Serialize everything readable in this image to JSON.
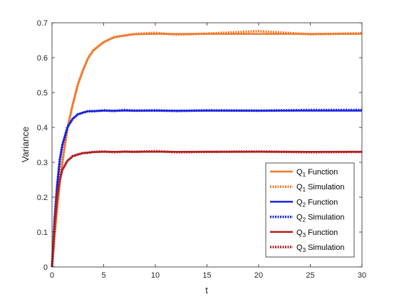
{
  "chart_data": {
    "type": "line",
    "title": "",
    "xlabel": "t",
    "ylabel": "Variance",
    "xlim": [
      0,
      30
    ],
    "ylim": [
      0,
      0.7
    ],
    "xticks": [
      "0",
      "5",
      "10",
      "15",
      "20",
      "25",
      "30"
    ],
    "yticks": [
      "0",
      "0.1",
      "0.2",
      "0.3",
      "0.4",
      "0.5",
      "0.6",
      "0.7"
    ],
    "grid": false,
    "legend_position": "lower-right",
    "x": [
      0,
      0.25,
      0.5,
      0.75,
      1,
      1.5,
      2,
      2.5,
      3,
      3.5,
      4,
      5,
      6,
      7,
      8,
      10,
      12,
      15,
      20,
      25,
      30
    ],
    "series": [
      {
        "name": "Q1 Function",
        "legend_main": "Q",
        "legend_sub": "1",
        "legend_rest": " Function",
        "color": "#F07A2A",
        "style": "solid",
        "values": [
          0,
          0.09,
          0.172,
          0.242,
          0.302,
          0.397,
          0.466,
          0.522,
          0.565,
          0.598,
          0.62,
          0.645,
          0.658,
          0.664,
          0.667,
          0.668,
          0.668,
          0.668,
          0.668,
          0.668,
          0.668
        ]
      },
      {
        "name": "Q1 Simulation",
        "legend_main": "Q",
        "legend_sub": "1",
        "legend_rest": " Simulation",
        "color": "#F07A2A",
        "style": "dotted",
        "values": [
          0,
          0.092,
          0.17,
          0.244,
          0.3,
          0.399,
          0.464,
          0.524,
          0.563,
          0.6,
          0.622,
          0.644,
          0.659,
          0.663,
          0.668,
          0.671,
          0.666,
          0.669,
          0.676,
          0.667,
          0.67
        ]
      },
      {
        "name": "Q2 Function",
        "legend_main": "Q",
        "legend_sub": "2",
        "legend_rest": " Function",
        "color": "#1A22E0",
        "style": "solid",
        "values": [
          0,
          0.135,
          0.235,
          0.305,
          0.35,
          0.4,
          0.425,
          0.437,
          0.443,
          0.446,
          0.447,
          0.448,
          0.448,
          0.448,
          0.448,
          0.448,
          0.448,
          0.448,
          0.448,
          0.448,
          0.448
        ]
      },
      {
        "name": "Q2 Simulation",
        "legend_main": "Q",
        "legend_sub": "2",
        "legend_rest": " Simulation",
        "color": "#1A22E0",
        "style": "dotted",
        "values": [
          0,
          0.137,
          0.233,
          0.307,
          0.349,
          0.402,
          0.424,
          0.438,
          0.442,
          0.447,
          0.446,
          0.449,
          0.447,
          0.45,
          0.448,
          0.449,
          0.447,
          0.449,
          0.448,
          0.45,
          0.45
        ]
      },
      {
        "name": "Q3 Function",
        "legend_main": "Q",
        "legend_sub": "3",
        "legend_rest": " Function",
        "color": "#B22020",
        "style": "solid",
        "values": [
          0,
          0.12,
          0.2,
          0.25,
          0.278,
          0.305,
          0.317,
          0.323,
          0.326,
          0.328,
          0.329,
          0.33,
          0.33,
          0.33,
          0.33,
          0.33,
          0.33,
          0.33,
          0.33,
          0.33,
          0.33
        ]
      },
      {
        "name": "Q3 Simulation",
        "legend_main": "Q",
        "legend_sub": "3",
        "legend_rest": " Simulation",
        "color": "#B22020",
        "style": "dotted",
        "values": [
          0,
          0.118,
          0.202,
          0.249,
          0.279,
          0.304,
          0.318,
          0.322,
          0.327,
          0.327,
          0.33,
          0.331,
          0.329,
          0.331,
          0.33,
          0.332,
          0.329,
          0.33,
          0.331,
          0.329,
          0.33
        ]
      }
    ]
  }
}
